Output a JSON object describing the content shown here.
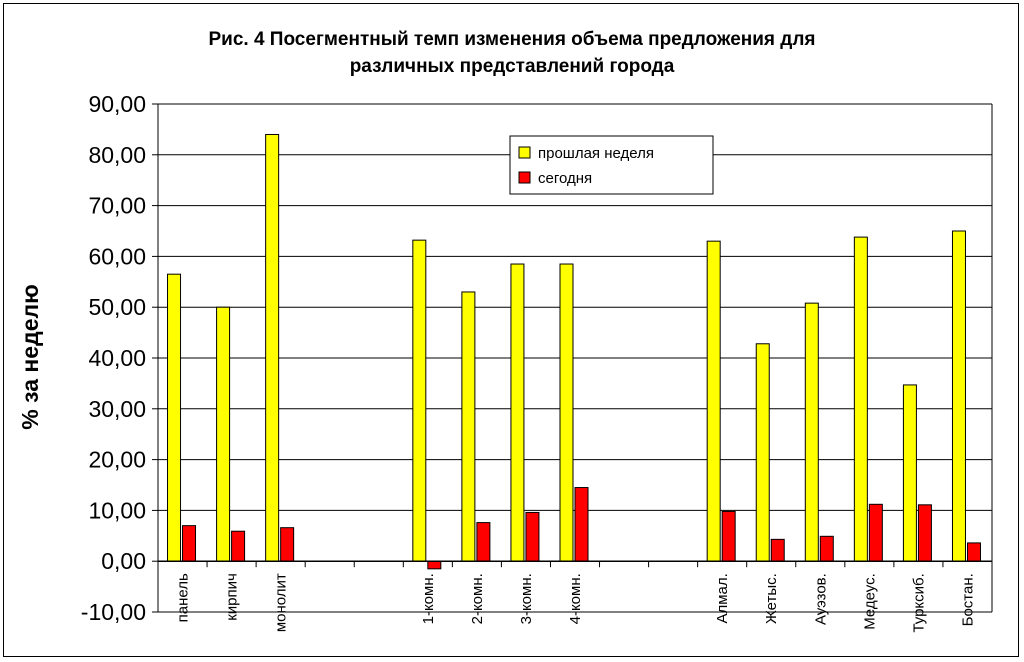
{
  "chart_data": {
    "type": "bar",
    "title": "Рис. 4 Посегментный темп изменения объема предложения для различных представлений города",
    "title_lines": [
      "Рис. 4 Посегментный темп изменения объема предложения для",
      "различных представлений города"
    ],
    "ylabel": "% за неделю",
    "xlabel": "",
    "ylim": [
      -10,
      90
    ],
    "yticks": [
      "-10,00",
      "0,00",
      "10,00",
      "20,00",
      "30,00",
      "40,00",
      "50,00",
      "60,00",
      "70,00",
      "80,00",
      "90,00"
    ],
    "grid": true,
    "legend_position": "top-center",
    "categories": [
      "панель",
      "кирпич",
      "монолит",
      "",
      "",
      "1-комн.",
      "2-комн.",
      "3-комн.",
      "4-комн.",
      "",
      "",
      "Алмал.",
      "Жетыс.",
      "Ауэзов.",
      "Медеус.",
      "Турксиб.",
      "Бостан."
    ],
    "series": [
      {
        "name": "прошлая неделя",
        "color": "#ffff00",
        "values": [
          56.5,
          50.0,
          84.0,
          null,
          null,
          63.2,
          53.0,
          58.5,
          58.5,
          null,
          null,
          63.0,
          42.8,
          50.8,
          63.8,
          34.7,
          65.0
        ]
      },
      {
        "name": "сегодня",
        "color": "#ff0000",
        "values": [
          7.0,
          5.9,
          6.6,
          null,
          null,
          -1.5,
          7.6,
          9.6,
          14.5,
          null,
          null,
          9.8,
          4.3,
          4.9,
          11.2,
          11.1,
          3.6
        ]
      }
    ]
  }
}
